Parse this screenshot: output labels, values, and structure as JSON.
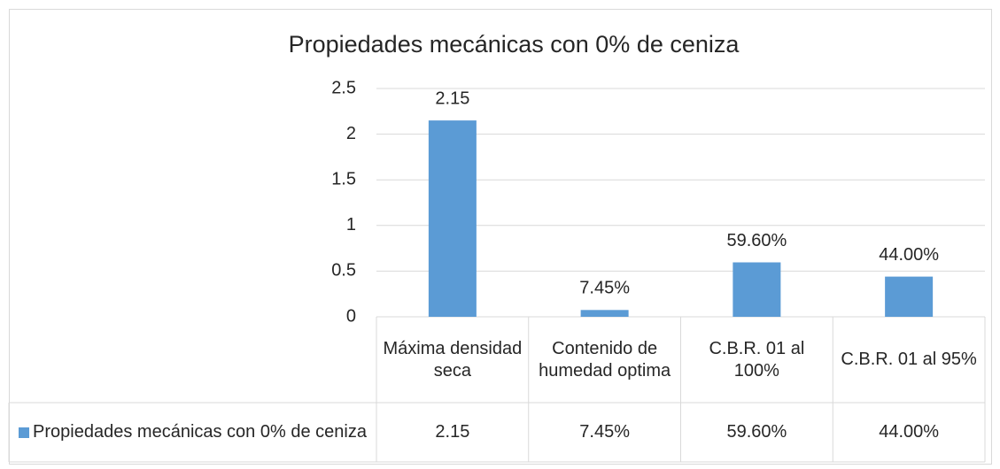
{
  "chart_data": {
    "type": "bar",
    "title": "Propiedades mecánicas con 0% de ceniza",
    "categories": [
      "Máxima densidad seca",
      "Contenido de humedad optima",
      "C.B.R. 01 al 100%",
      "C.B.R. 01 al 95%"
    ],
    "series": [
      {
        "name": "Propiedades mecánicas con 0% de ceniza",
        "color": "#5b9bd5",
        "values": [
          2.15,
          0.0745,
          0.596,
          0.44
        ],
        "value_labels": [
          "2.15",
          "7.45%",
          "59.60%",
          "44.00%"
        ]
      }
    ],
    "ylim": [
      0,
      2.5
    ],
    "yticks": [
      0,
      0.5,
      1,
      1.5,
      2,
      2.5
    ],
    "grid": true,
    "data_table": true
  }
}
